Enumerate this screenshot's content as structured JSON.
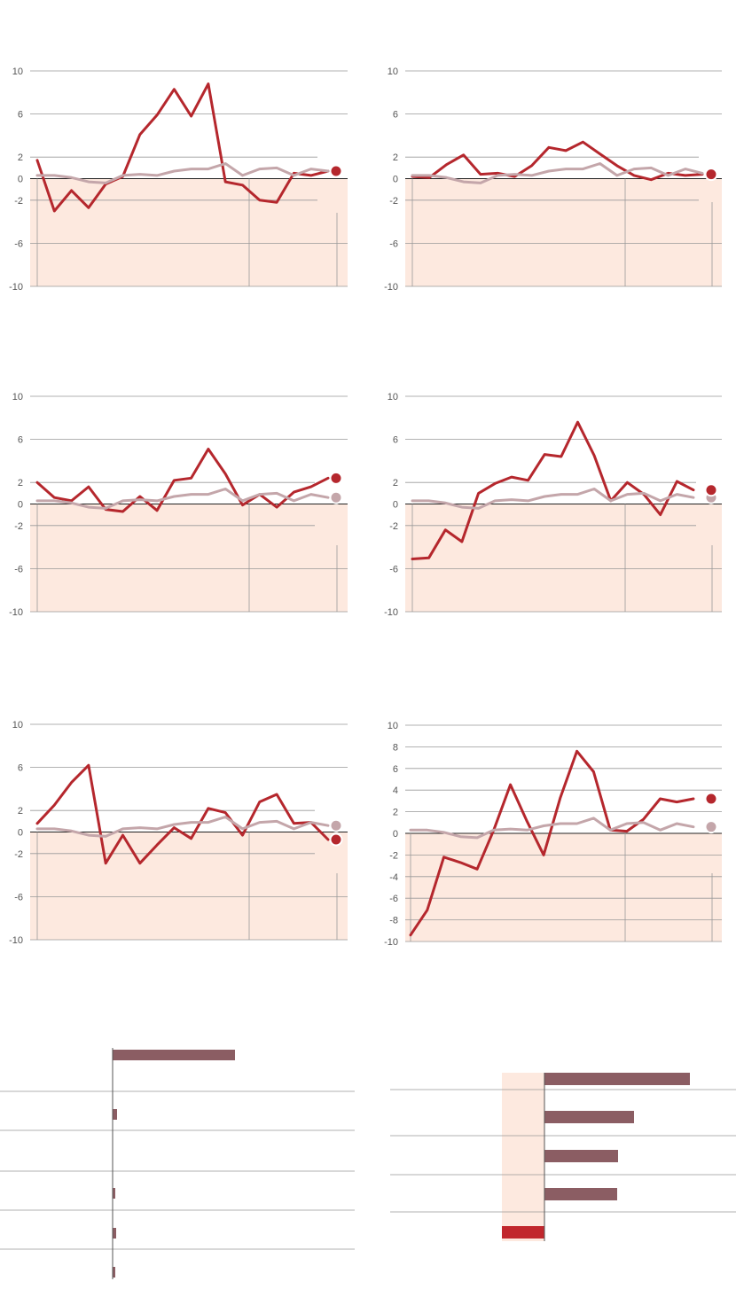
{
  "colors": {
    "series_main": "#b5272d",
    "series_avg": "#c4a6aa",
    "negative_zone": "#fde9df",
    "grid": "#999999",
    "bar": "#8b5d63",
    "bar_negative": "#c1272d"
  },
  "chart_data": [
    {
      "type": "line",
      "ylim": [
        -10,
        10
      ],
      "ticks": [
        10,
        6,
        2,
        0,
        -2,
        -6,
        -10
      ],
      "grid": true,
      "series": [
        {
          "role": "main",
          "values": [
            1.7,
            -3.0,
            -1.1,
            -2.7,
            -0.5,
            0.2,
            4.1,
            5.9,
            8.3,
            5.8,
            8.8,
            -0.3,
            -0.6,
            -2.0,
            -2.2,
            0.5,
            0.3,
            0.7
          ]
        },
        {
          "role": "average",
          "values": [
            0.3,
            0.3,
            0.1,
            -0.3,
            -0.4,
            0.3,
            0.4,
            0.3,
            0.7,
            0.9,
            0.9,
            1.4,
            0.3,
            0.9,
            1.0,
            0.3,
            0.9,
            0.7
          ]
        }
      ]
    },
    {
      "type": "line",
      "ylim": [
        -10,
        10
      ],
      "ticks": [
        10,
        6,
        2,
        0,
        -2,
        -6,
        -10
      ],
      "grid": true,
      "series": [
        {
          "role": "main",
          "values": [
            0.2,
            0.1,
            1.3,
            2.2,
            0.4,
            0.5,
            0.2,
            1.2,
            2.9,
            2.6,
            3.4,
            2.3,
            1.2,
            0.3,
            -0.1,
            0.5,
            0.3,
            0.4
          ]
        },
        {
          "role": "average",
          "values": [
            0.3,
            0.3,
            0.1,
            -0.3,
            -0.4,
            0.3,
            0.4,
            0.3,
            0.7,
            0.9,
            0.9,
            1.4,
            0.3,
            0.9,
            1.0,
            0.3,
            0.9,
            0.5
          ]
        }
      ]
    },
    {
      "type": "line",
      "ylim": [
        -10,
        10
      ],
      "ticks": [
        10,
        6,
        2,
        0,
        -2,
        -6,
        -10
      ],
      "grid": true,
      "series": [
        {
          "role": "main",
          "values": [
            2.0,
            0.6,
            0.3,
            1.6,
            -0.5,
            -0.7,
            0.7,
            -0.6,
            2.2,
            2.4,
            5.1,
            2.8,
            -0.1,
            0.9,
            -0.3,
            1.1,
            1.6,
            2.4
          ]
        },
        {
          "role": "average",
          "values": [
            0.3,
            0.3,
            0.1,
            -0.3,
            -0.4,
            0.3,
            0.4,
            0.3,
            0.7,
            0.9,
            0.9,
            1.4,
            0.3,
            0.9,
            1.0,
            0.3,
            0.9,
            0.6
          ]
        }
      ]
    },
    {
      "type": "line",
      "ylim": [
        -10,
        10
      ],
      "ticks": [
        10,
        6,
        2,
        0,
        -2,
        -6,
        -10
      ],
      "grid": true,
      "series": [
        {
          "role": "main",
          "values": [
            -5.1,
            -5.0,
            -2.4,
            -3.5,
            1.0,
            1.9,
            2.5,
            2.2,
            4.6,
            4.4,
            7.6,
            4.5,
            0.3,
            2.0,
            0.9,
            -1.0,
            2.1,
            1.3
          ]
        },
        {
          "role": "average",
          "values": [
            0.3,
            0.3,
            0.1,
            -0.3,
            -0.4,
            0.3,
            0.4,
            0.3,
            0.7,
            0.9,
            0.9,
            1.4,
            0.3,
            0.9,
            1.0,
            0.3,
            0.9,
            0.6
          ]
        }
      ]
    },
    {
      "type": "line",
      "ylim": [
        -10,
        10
      ],
      "ticks": [
        10,
        6,
        2,
        0,
        -2,
        -6,
        -10
      ],
      "grid": true,
      "series": [
        {
          "role": "main",
          "values": [
            0.8,
            2.5,
            4.6,
            6.2,
            -2.9,
            -0.3,
            -2.9,
            -1.2,
            0.4,
            -0.6,
            2.2,
            1.8,
            -0.3,
            2.8,
            3.5,
            0.8,
            0.9,
            -0.7
          ]
        },
        {
          "role": "average",
          "values": [
            0.3,
            0.3,
            0.1,
            -0.3,
            -0.4,
            0.3,
            0.4,
            0.3,
            0.7,
            0.9,
            0.9,
            1.4,
            0.3,
            0.9,
            1.0,
            0.3,
            0.9,
            0.6
          ]
        }
      ]
    },
    {
      "type": "line",
      "ylim": [
        -10,
        10
      ],
      "ticks": [
        10,
        8,
        6,
        4,
        2,
        0,
        -2,
        -4,
        -6,
        -8,
        -10
      ],
      "grid": true,
      "series": [
        {
          "role": "main",
          "values": [
            -9.4,
            -7.1,
            -2.2,
            -2.7,
            -3.3,
            0.3,
            4.5,
            1.1,
            -2.0,
            3.3,
            7.6,
            5.7,
            0.3,
            0.2,
            1.3,
            3.2,
            2.9,
            3.2
          ]
        },
        {
          "role": "average",
          "values": [
            0.3,
            0.3,
            0.1,
            -0.3,
            -0.4,
            0.3,
            0.4,
            0.3,
            0.7,
            0.9,
            0.9,
            1.4,
            0.3,
            0.9,
            1.0,
            0.3,
            0.9,
            0.6
          ]
        }
      ]
    },
    {
      "type": "bar",
      "orientation": "horizontal",
      "values": [
        13.8,
        0.5,
        0.3,
        0.4,
        0.3
      ]
    },
    {
      "type": "bar",
      "orientation": "horizontal",
      "values": [
        16.4,
        10.1,
        8.3,
        8.2,
        -4.8
      ]
    }
  ]
}
